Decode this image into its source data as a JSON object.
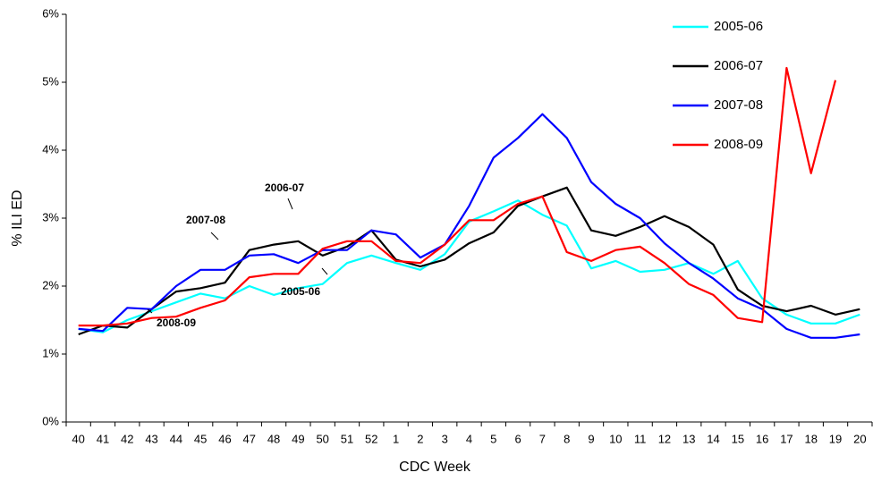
{
  "chart_data": {
    "type": "line",
    "xlabel": "CDC Week",
    "ylabel": "% ILI ED",
    "categories": [
      "40",
      "41",
      "42",
      "43",
      "44",
      "45",
      "46",
      "47",
      "48",
      "49",
      "50",
      "51",
      "52",
      "1",
      "2",
      "3",
      "4",
      "5",
      "6",
      "7",
      "8",
      "9",
      "10",
      "11",
      "12",
      "13",
      "14",
      "15",
      "16",
      "17",
      "18",
      "19",
      "20"
    ],
    "series": [
      {
        "name": "2005-06",
        "color": "#00ffff",
        "values": [
          1.37,
          1.32,
          1.5,
          1.63,
          1.76,
          1.89,
          1.82,
          2.0,
          1.87,
          1.97,
          2.03,
          2.34,
          2.45,
          2.34,
          2.24,
          2.47,
          2.95,
          3.1,
          3.26,
          3.05,
          2.89,
          2.26,
          2.37,
          2.21,
          2.24,
          2.34,
          2.18,
          2.37,
          1.82,
          1.58,
          1.45,
          1.45,
          1.58
        ]
      },
      {
        "name": "2006-07",
        "color": "#000000",
        "values": [
          1.29,
          1.42,
          1.39,
          1.66,
          1.92,
          1.97,
          2.05,
          2.53,
          2.61,
          2.66,
          2.45,
          2.58,
          2.82,
          2.39,
          2.29,
          2.39,
          2.63,
          2.79,
          3.18,
          3.32,
          3.45,
          2.82,
          2.74,
          2.87,
          3.03,
          2.87,
          2.61,
          1.95,
          1.71,
          1.63,
          1.71,
          1.58,
          1.66
        ]
      },
      {
        "name": "2007-08",
        "color": "#0000ff",
        "values": [
          1.37,
          1.34,
          1.68,
          1.66,
          2.0,
          2.24,
          2.24,
          2.45,
          2.47,
          2.34,
          2.53,
          2.53,
          2.82,
          2.76,
          2.42,
          2.61,
          3.18,
          3.89,
          4.18,
          4.53,
          4.18,
          3.53,
          3.21,
          3.0,
          2.63,
          2.34,
          2.11,
          1.82,
          1.66,
          1.37,
          1.24,
          1.24,
          1.29
        ]
      },
      {
        "name": "2008-09",
        "color": "#ff0000",
        "values": [
          1.42,
          1.42,
          1.45,
          1.53,
          1.55,
          1.68,
          1.79,
          2.13,
          2.18,
          2.18,
          2.55,
          2.66,
          2.66,
          2.37,
          2.34,
          2.61,
          2.97,
          2.97,
          3.21,
          3.32,
          2.5,
          2.37,
          2.53,
          2.58,
          2.34,
          2.03,
          1.87,
          1.53,
          1.47,
          5.21,
          3.66,
          5.03,
          null
        ]
      }
    ],
    "ylim": [
      0,
      6
    ],
    "yticks": [
      {
        "value": 0,
        "label": "0%"
      },
      {
        "value": 1,
        "label": "1%"
      },
      {
        "value": 2,
        "label": "2%"
      },
      {
        "value": 3,
        "label": "3%"
      },
      {
        "value": 4,
        "label": "4%"
      },
      {
        "value": 5,
        "label": "5%"
      },
      {
        "value": 6,
        "label": "6%"
      }
    ],
    "legend": "upper right",
    "annotations": [
      "2006-07",
      "2007-08",
      "2005-06",
      "2008-09"
    ]
  }
}
